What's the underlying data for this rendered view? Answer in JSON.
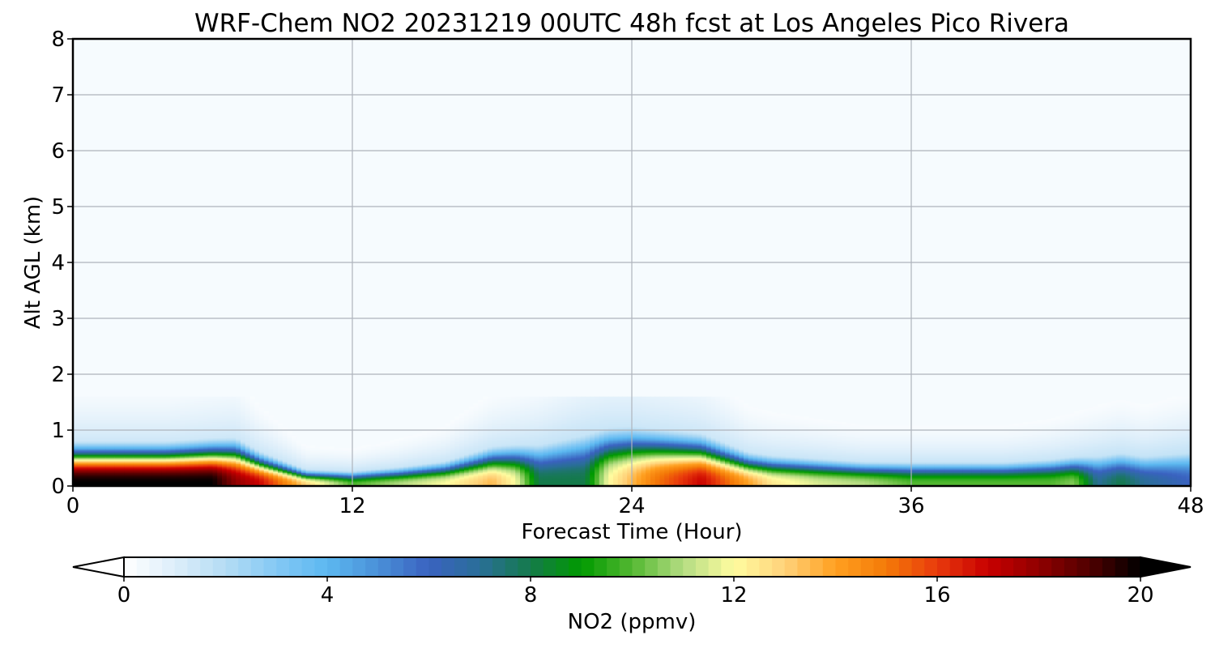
{
  "chart_data": {
    "type": "heatmap",
    "title": "WRF-Chem NO2  20231219 00UTC 48h fcst at Los Angeles Pico Rivera",
    "xlabel": "Forecast Time (Hour)",
    "ylabel": "Alt AGL (km)",
    "xlim": [
      0,
      48
    ],
    "ylim": [
      0,
      8
    ],
    "xticks": [
      0,
      12,
      24,
      36,
      48
    ],
    "yticks": [
      0,
      1,
      2,
      3,
      4,
      5,
      6,
      7,
      8
    ],
    "grid": true,
    "colorbar": {
      "label": "NO2  (ppmv)",
      "range": [
        0,
        20
      ],
      "ticks": [
        0,
        4,
        8,
        12,
        16,
        20
      ],
      "extend": "both",
      "colors": [
        "#ffffff",
        "#ddeefa",
        "#b4dcf4",
        "#84c8f4",
        "#5cb8f0",
        "#4a90d8",
        "#3a62c0",
        "#2a6e98",
        "#147a4a",
        "#009a00",
        "#54b832",
        "#b4dc82",
        "#fffca0",
        "#ffd27a",
        "#ffa020",
        "#f47a08",
        "#e83a0c",
        "#c80000",
        "#900000",
        "#500000",
        "#000000"
      ],
      "under_color": "#ffffff",
      "over_color": "#000000"
    },
    "field_profile": {
      "hours": [
        0,
        2,
        4,
        6,
        7,
        8,
        10,
        12,
        14,
        16,
        18,
        19,
        20,
        22,
        23,
        24,
        25,
        27,
        29,
        30,
        32,
        34,
        36,
        38,
        40,
        42,
        43,
        44,
        45,
        46,
        48
      ],
      "surface_no2_ppmv": [
        20,
        20,
        20,
        20,
        18,
        17,
        13,
        10,
        11,
        12,
        13.5,
        12,
        8,
        8,
        12,
        13.5,
        15,
        17,
        14,
        12.5,
        11.5,
        11,
        10,
        10,
        10,
        10,
        10.5,
        7,
        8,
        7,
        6
      ],
      "mixing_depth_km": [
        0.75,
        0.75,
        0.75,
        0.8,
        0.82,
        0.6,
        0.3,
        0.28,
        0.35,
        0.45,
        0.7,
        0.75,
        0.8,
        1.0,
        1.05,
        1.05,
        1.0,
        0.9,
        0.6,
        0.55,
        0.5,
        0.45,
        0.45,
        0.45,
        0.45,
        0.5,
        0.55,
        0.6,
        0.65,
        0.6,
        0.7
      ]
    }
  }
}
